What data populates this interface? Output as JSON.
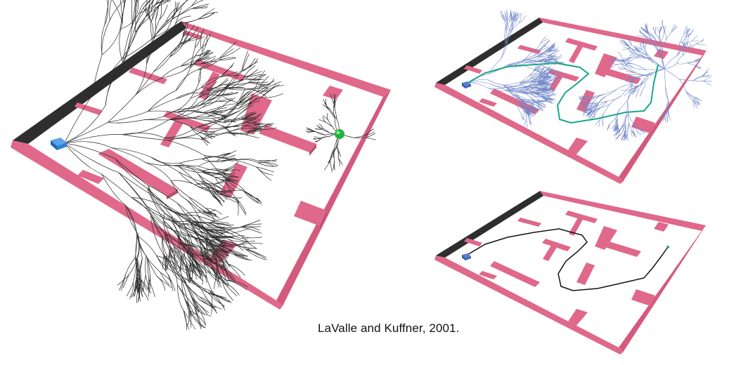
{
  "caption": "LaValle and Kuffner, 2001.",
  "colors": {
    "wall": "#e0688a",
    "wall_dark": "#b84b6c",
    "wall_edge": "#333333",
    "floor": "#ffffff",
    "tree_main": "#2b2b2b",
    "tree_small": "#6f85c8",
    "path_teal": "#1aa58a",
    "path_black": "#111111",
    "robot": "#2f7fd6",
    "goal": "#22b33c"
  },
  "scenes": [
    {
      "name": "main-maze",
      "content": [
        "dense-exploration-tree",
        "robot-start",
        "green-goal"
      ]
    },
    {
      "name": "top-right-maze",
      "content": [
        "bidirectional-trees",
        "teal-solution-path"
      ]
    },
    {
      "name": "bottom-right-maze",
      "content": [
        "black-solution-path"
      ]
    }
  ]
}
